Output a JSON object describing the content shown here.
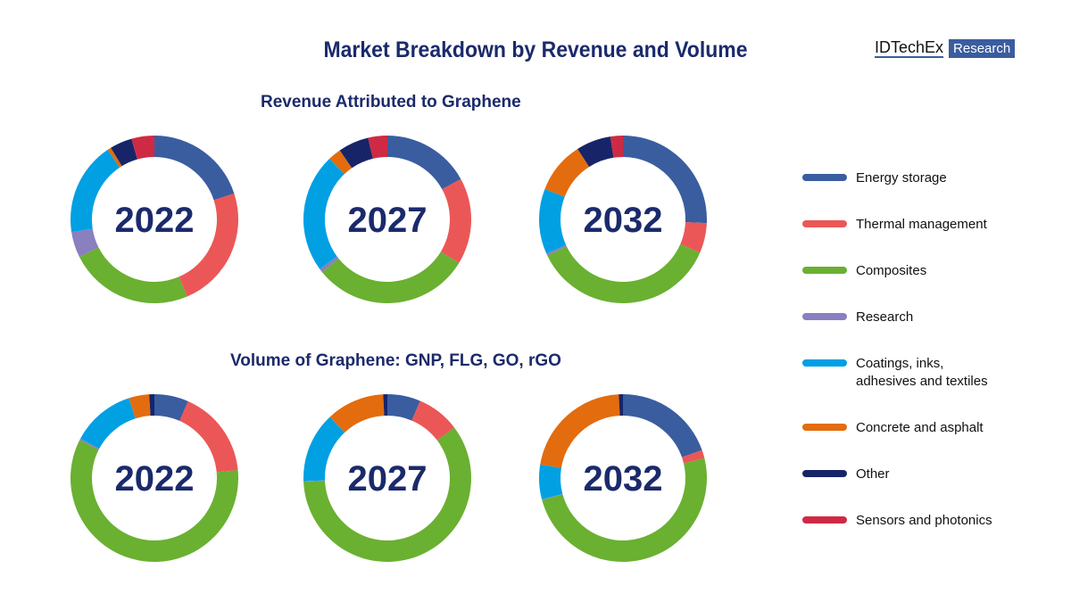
{
  "title": "Market Breakdown by Revenue and Volume",
  "logo": {
    "brand": "IDTechEx",
    "tag": "Research"
  },
  "categories": [
    "Energy storage",
    "Thermal management",
    "Composites",
    "Research",
    "Coatings, inks, adhesives and textiles",
    "Concrete and asphalt",
    "Other",
    "Sensors and photonics"
  ],
  "colors": [
    "#3a5da0",
    "#eb5757",
    "#6ab031",
    "#8a7fbf",
    "#00a0e3",
    "#e36c0e",
    "#172568",
    "#cf2a44"
  ],
  "chart_data": [
    {
      "type": "pie",
      "title": "Revenue Attributed to Graphene",
      "label": "2022",
      "values": [
        20,
        23.6,
        24,
        5,
        18,
        0.7,
        4.3,
        4.4
      ]
    },
    {
      "type": "pie",
      "title": "Revenue Attributed to Graphene",
      "label": "2027",
      "values": [
        17,
        16.7,
        30.5,
        0.7,
        23,
        2.5,
        5.9,
        3.7
      ]
    },
    {
      "type": "pie",
      "title": "Revenue Attributed to Graphene",
      "label": "2032",
      "values": [
        25.7,
        5.8,
        36.4,
        0.4,
        12.6,
        10,
        6.7,
        2.4
      ]
    },
    {
      "type": "pie",
      "title": "Volume of Graphene: GNP, FLG, GO, rGO",
      "label": "2022",
      "values": [
        6.6,
        16.9,
        59,
        0.3,
        12.3,
        3.9,
        1,
        0
      ]
    },
    {
      "type": "pie",
      "title": "Volume of Graphene: GNP, FLG, GO, rGO",
      "label": "2027",
      "values": [
        6.4,
        8.3,
        59.6,
        0.1,
        13.6,
        11.2,
        0.8,
        0
      ]
    },
    {
      "type": "pie",
      "title": "Volume of Graphene: GNP, FLG, GO, rGO",
      "label": "2032",
      "values": [
        19.6,
        1.6,
        49.6,
        0.1,
        6.7,
        21.6,
        0.8,
        0
      ]
    }
  ],
  "sections": {
    "revenue": "Revenue Attributed to Graphene",
    "volume": "Volume of Graphene: GNP, FLG, GO, rGO"
  }
}
